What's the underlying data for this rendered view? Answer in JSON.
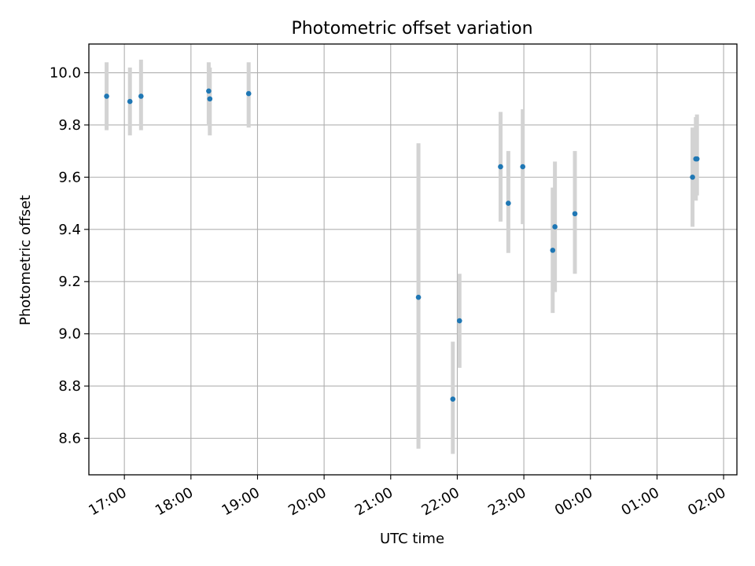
{
  "chart_data": {
    "type": "scatter",
    "title": "Photometric offset variation",
    "xlabel": "UTC time",
    "ylabel": "Photometric offset",
    "x_unit": "time (HH:MM)",
    "xlim": [
      "16:28",
      "02:12"
    ],
    "xticks": [
      "17:00",
      "18:00",
      "19:00",
      "20:00",
      "21:00",
      "22:00",
      "23:00",
      "00:00",
      "01:00",
      "02:00"
    ],
    "ylim": [
      8.46,
      10.11
    ],
    "yticks": [
      8.6,
      8.8,
      9.0,
      9.2,
      9.4,
      9.6,
      9.8,
      10.0
    ],
    "grid": true,
    "colors": {
      "point": "#1f77b4",
      "errorbar": "#d3d3d3",
      "grid": "#b0b0b0"
    },
    "series": [
      {
        "points": [
          {
            "x": "16:44",
            "y": 9.91,
            "ylow": 9.78,
            "yhigh": 10.04
          },
          {
            "x": "17:05",
            "y": 9.89,
            "ylow": 9.76,
            "yhigh": 10.02
          },
          {
            "x": "17:15",
            "y": 9.91,
            "ylow": 9.78,
            "yhigh": 10.05
          },
          {
            "x": "18:16",
            "y": 9.93,
            "ylow": 9.8,
            "yhigh": 10.04
          },
          {
            "x": "18:17",
            "y": 9.9,
            "ylow": 9.76,
            "yhigh": 10.02
          },
          {
            "x": "18:52",
            "y": 9.92,
            "ylow": 9.79,
            "yhigh": 10.04
          },
          {
            "x": "21:25",
            "y": 9.14,
            "ylow": 8.56,
            "yhigh": 9.73
          },
          {
            "x": "21:56",
            "y": 8.75,
            "ylow": 8.54,
            "yhigh": 8.97
          },
          {
            "x": "22:02",
            "y": 9.05,
            "ylow": 8.87,
            "yhigh": 9.23
          },
          {
            "x": "22:39",
            "y": 9.64,
            "ylow": 9.43,
            "yhigh": 9.85
          },
          {
            "x": "22:46",
            "y": 9.5,
            "ylow": 9.31,
            "yhigh": 9.7
          },
          {
            "x": "22:59",
            "y": 9.64,
            "ylow": 9.42,
            "yhigh": 9.86
          },
          {
            "x": "23:26",
            "y": 9.32,
            "ylow": 9.08,
            "yhigh": 9.56
          },
          {
            "x": "23:28",
            "y": 9.41,
            "ylow": 9.16,
            "yhigh": 9.66
          },
          {
            "x": "23:46",
            "y": 9.46,
            "ylow": 9.23,
            "yhigh": 9.7
          },
          {
            "x": "01:32",
            "y": 9.6,
            "ylow": 9.41,
            "yhigh": 9.79
          },
          {
            "x": "01:35",
            "y": 9.67,
            "ylow": 9.51,
            "yhigh": 9.83
          },
          {
            "x": "01:36",
            "y": 9.67,
            "ylow": 9.53,
            "yhigh": 9.84
          }
        ]
      }
    ]
  }
}
